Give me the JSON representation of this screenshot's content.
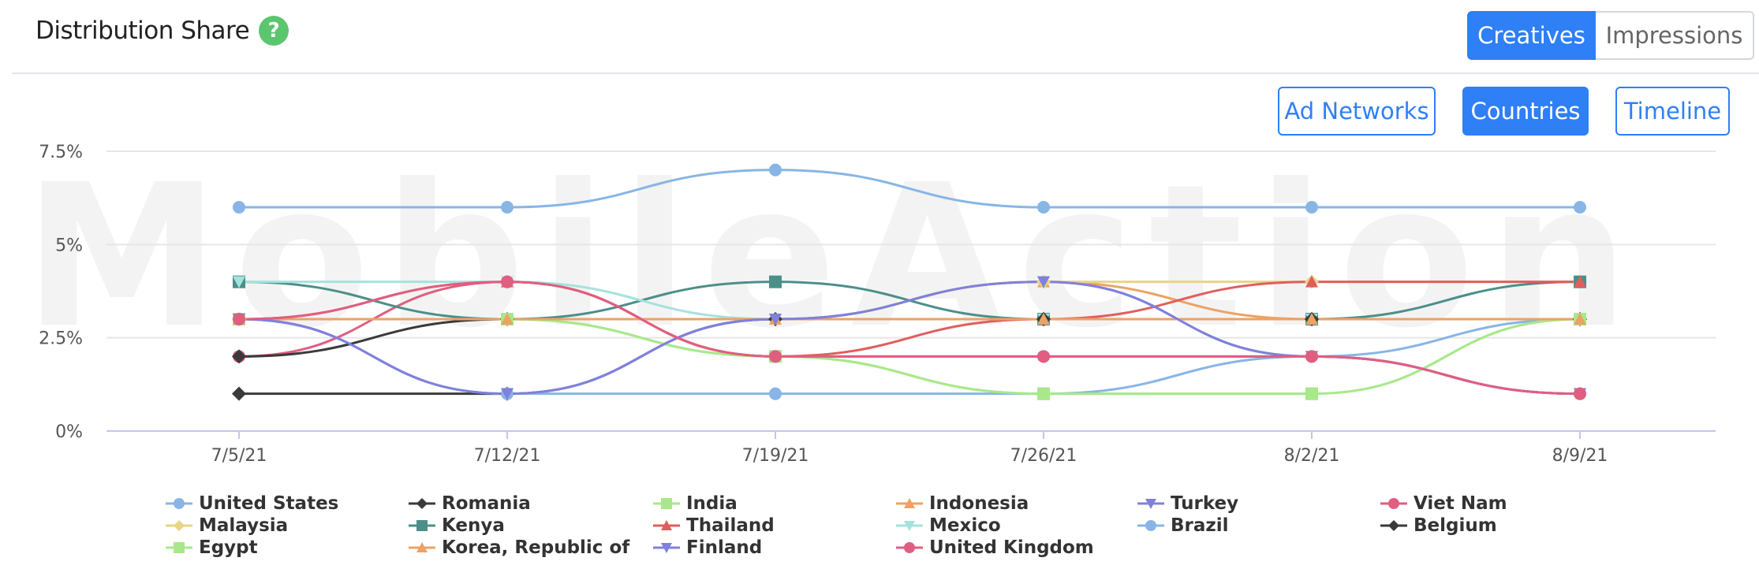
{
  "header": {
    "title": "Distribution Share",
    "help_icon": "?"
  },
  "segmented": {
    "creatives": "Creatives",
    "impressions": "Impressions"
  },
  "view_buttons": {
    "ad_networks": "Ad Networks",
    "countries": "Countries",
    "timeline": "Timeline"
  },
  "watermark": "MobileAction",
  "colors": {
    "accent": "#2f7ff6",
    "help": "#5cc56f",
    "grid": "#e6e6e6",
    "axis": "#c5c5e8"
  },
  "chart_data": {
    "type": "line",
    "categories": [
      "7/5/21",
      "7/12/21",
      "7/19/21",
      "7/26/21",
      "8/2/21",
      "8/9/21"
    ],
    "y_ticks": [
      {
        "value": 0,
        "label": "0%"
      },
      {
        "value": 2.5,
        "label": "2.5%"
      },
      {
        "value": 5,
        "label": "5%"
      },
      {
        "value": 7.5,
        "label": "7.5%"
      }
    ],
    "ylim": [
      0,
      7.5
    ],
    "grid": true,
    "legend_position": "bottom",
    "series": [
      {
        "name": "United States",
        "color": "#88b5e6",
        "marker": "circle",
        "values": [
          6,
          6,
          7,
          6,
          6,
          6
        ]
      },
      {
        "name": "Romania",
        "color": "#3a3a3a",
        "marker": "diamond",
        "values": [
          1,
          1,
          3,
          3,
          3,
          3
        ]
      },
      {
        "name": "India",
        "color": "#a8e88a",
        "marker": "square",
        "values": [
          3,
          3,
          2,
          1,
          1,
          3
        ]
      },
      {
        "name": "Indonesia",
        "color": "#eda263",
        "marker": "triangle",
        "values": [
          3,
          3,
          3,
          4,
          3,
          3
        ]
      },
      {
        "name": "Turkey",
        "color": "#8080dd",
        "marker": "triangle-down",
        "values": [
          3,
          1,
          3,
          4,
          2,
          1
        ]
      },
      {
        "name": "Viet Nam",
        "color": "#e05e80",
        "marker": "circle",
        "values": [
          2,
          4,
          2,
          2,
          2,
          1
        ]
      },
      {
        "name": "Malaysia",
        "color": "#e8d585",
        "marker": "diamond",
        "values": [
          3,
          3,
          3,
          4,
          4,
          4
        ]
      },
      {
        "name": "Kenya",
        "color": "#4c8f89",
        "marker": "square",
        "values": [
          4,
          3,
          4,
          3,
          3,
          4
        ]
      },
      {
        "name": "Thailand",
        "color": "#e05e5e",
        "marker": "triangle",
        "values": [
          3,
          4,
          2,
          3,
          4,
          4
        ]
      },
      {
        "name": "Mexico",
        "color": "#a6e2dc",
        "marker": "triangle-down",
        "values": [
          4,
          4,
          3,
          3,
          3,
          3
        ]
      },
      {
        "name": "Brazil",
        "color": "#88b5e6",
        "marker": "circle",
        "values": [
          3,
          1,
          1,
          1,
          2,
          3
        ]
      },
      {
        "name": "Belgium",
        "color": "#3a3a3a",
        "marker": "diamond",
        "values": [
          2,
          3,
          3,
          3,
          3,
          3
        ]
      },
      {
        "name": "Egypt",
        "color": "#a8e88a",
        "marker": "square",
        "values": [
          3,
          3,
          2,
          1,
          1,
          3
        ]
      },
      {
        "name": "Korea, Republic of",
        "color": "#eda263",
        "marker": "triangle",
        "values": [
          3,
          3,
          3,
          3,
          3,
          3
        ]
      },
      {
        "name": "Finland",
        "color": "#8080dd",
        "marker": "triangle-down",
        "values": [
          3,
          1,
          3,
          4,
          2,
          1
        ]
      },
      {
        "name": "United Kingdom",
        "color": "#e05e80",
        "marker": "circle",
        "values": [
          3,
          4,
          2,
          2,
          2,
          1
        ]
      }
    ]
  }
}
